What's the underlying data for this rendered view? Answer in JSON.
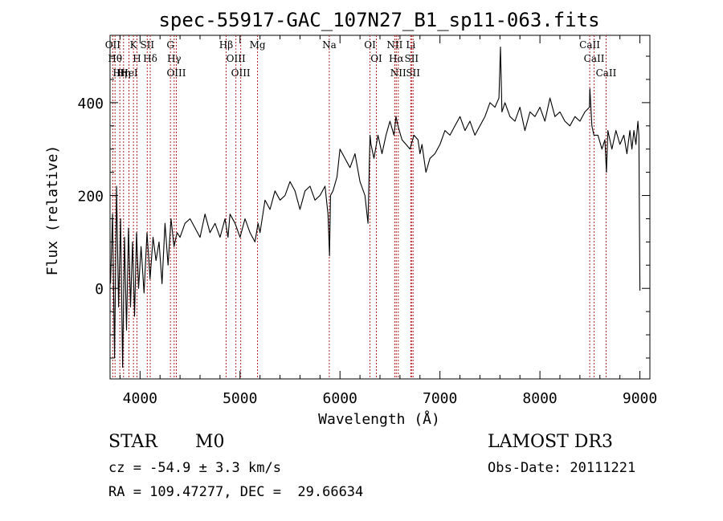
{
  "chart_data": {
    "type": "line",
    "title": "spec-55917-GAC_107N27_B1_sp11-063.fits",
    "xlabel": "Wavelength (Å)",
    "ylabel": "Flux (relative)",
    "xlim": [
      3700,
      9100
    ],
    "ylim": [
      -195,
      545
    ],
    "x_ticks": [
      4000,
      5000,
      6000,
      7000,
      8000,
      9000
    ],
    "y_ticks": [
      0,
      200,
      400
    ],
    "x_tick_labels": [
      "4000",
      "5000",
      "6000",
      "7000",
      "8000",
      "9000"
    ],
    "y_tick_labels": [
      "0",
      "200",
      "400"
    ],
    "grid": false,
    "line_color": "#000000",
    "marker_color": "#b22222",
    "series": [
      {
        "name": "flux",
        "x": [
          3705,
          3725,
          3745,
          3765,
          3785,
          3805,
          3825,
          3845,
          3865,
          3885,
          3905,
          3925,
          3945,
          3965,
          3985,
          4010,
          4040,
          4070,
          4100,
          4130,
          4160,
          4190,
          4220,
          4250,
          4280,
          4310,
          4340,
          4370,
          4400,
          4450,
          4500,
          4550,
          4600,
          4650,
          4700,
          4750,
          4800,
          4850,
          4880,
          4900,
          4950,
          5000,
          5050,
          5100,
          5150,
          5180,
          5200,
          5250,
          5300,
          5350,
          5400,
          5450,
          5500,
          5550,
          5600,
          5650,
          5700,
          5750,
          5800,
          5850,
          5880,
          5895,
          5905,
          5930,
          5970,
          6000,
          6050,
          6100,
          6150,
          6200,
          6250,
          6280,
          6300,
          6310,
          6340,
          6380,
          6420,
          6460,
          6500,
          6540,
          6560,
          6580,
          6620,
          6660,
          6700,
          6740,
          6780,
          6800,
          6820,
          6860,
          6900,
          6950,
          7000,
          7050,
          7100,
          7150,
          7200,
          7250,
          7300,
          7350,
          7400,
          7450,
          7500,
          7550,
          7590,
          7605,
          7620,
          7650,
          7700,
          7750,
          7800,
          7850,
          7900,
          7950,
          8000,
          8050,
          8100,
          8150,
          8200,
          8250,
          8300,
          8350,
          8400,
          8450,
          8495,
          8500,
          8520,
          8540,
          8580,
          8620,
          8650,
          8665,
          8680,
          8720,
          8760,
          8800,
          8840,
          8870,
          8900,
          8920,
          8940,
          8960,
          8980,
          8990,
          8996,
          9000
        ],
        "y": [
          10,
          160,
          -150,
          220,
          -40,
          150,
          -170,
          110,
          -90,
          130,
          -40,
          100,
          -60,
          120,
          0,
          90,
          -10,
          120,
          20,
          110,
          60,
          100,
          10,
          140,
          50,
          150,
          90,
          120,
          110,
          140,
          150,
          130,
          110,
          160,
          120,
          140,
          110,
          150,
          110,
          160,
          140,
          110,
          150,
          120,
          100,
          140,
          120,
          190,
          170,
          210,
          190,
          200,
          230,
          210,
          170,
          210,
          220,
          190,
          200,
          220,
          160,
          70,
          200,
          210,
          240,
          300,
          280,
          260,
          290,
          230,
          200,
          140,
          330,
          310,
          280,
          330,
          290,
          330,
          360,
          330,
          370,
          350,
          320,
          310,
          300,
          330,
          320,
          290,
          310,
          250,
          280,
          290,
          310,
          340,
          330,
          350,
          370,
          340,
          360,
          330,
          350,
          370,
          400,
          390,
          410,
          520,
          380,
          400,
          370,
          360,
          390,
          340,
          380,
          370,
          390,
          360,
          410,
          370,
          380,
          360,
          350,
          370,
          360,
          380,
          390,
          430,
          350,
          330,
          330,
          300,
          320,
          250,
          340,
          300,
          340,
          310,
          330,
          290,
          340,
          300,
          340,
          310,
          360,
          330,
          120,
          -5
        ]
      }
    ],
    "line_markers": [
      {
        "wavelength": 3727,
        "label": "OII"
      },
      {
        "wavelength": 3750,
        "label": "Hθ"
      },
      {
        "wavelength": 3798,
        "label": "Hη"
      },
      {
        "wavelength": 3835,
        "label": "Hη"
      },
      {
        "wavelength": 3889,
        "label": "HeI"
      },
      {
        "wavelength": 3934,
        "label": "K"
      },
      {
        "wavelength": 3969,
        "label": "H"
      },
      {
        "wavelength": 4072,
        "label": "SII"
      },
      {
        "wavelength": 4102,
        "label": "Hδ"
      },
      {
        "wavelength": 4304,
        "label": "G"
      },
      {
        "wavelength": 4341,
        "label": "Hγ"
      },
      {
        "wavelength": 4363,
        "label": "OIII"
      },
      {
        "wavelength": 4861,
        "label": "Hβ"
      },
      {
        "wavelength": 4959,
        "label": "OIII"
      },
      {
        "wavelength": 5007,
        "label": "OIII"
      },
      {
        "wavelength": 5175,
        "label": "Mg"
      },
      {
        "wavelength": 5893,
        "label": "Na"
      },
      {
        "wavelength": 6300,
        "label": "OI"
      },
      {
        "wavelength": 6364,
        "label": "OI"
      },
      {
        "wavelength": 6548,
        "label": "NII"
      },
      {
        "wavelength": 6563,
        "label": "Hα"
      },
      {
        "wavelength": 6583,
        "label": "NII"
      },
      {
        "wavelength": 6708,
        "label": "Li"
      },
      {
        "wavelength": 6716,
        "label": "SII"
      },
      {
        "wavelength": 6731,
        "label": "SII"
      },
      {
        "wavelength": 8498,
        "label": "CaII"
      },
      {
        "wavelength": 8542,
        "label": "CaII"
      },
      {
        "wavelength": 8662,
        "label": "CaII"
      }
    ]
  },
  "info": {
    "object_class": "STAR",
    "subclass": "M0",
    "survey": "LAMOST DR3",
    "redshift": "cz = -54.9 ± 3.3 km/s",
    "obs_date": "Obs-Date: 20111221",
    "coords": "RA = 109.47277, DEC =  29.66634"
  }
}
